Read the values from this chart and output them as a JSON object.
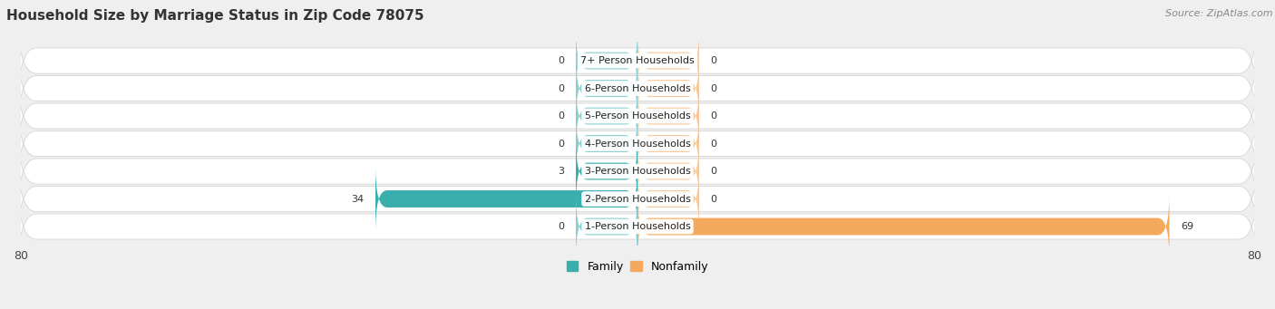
{
  "title": "Household Size by Marriage Status in Zip Code 78075",
  "source": "Source: ZipAtlas.com",
  "categories": [
    "7+ Person Households",
    "6-Person Households",
    "5-Person Households",
    "4-Person Households",
    "3-Person Households",
    "2-Person Households",
    "1-Person Households"
  ],
  "family_values": [
    0,
    0,
    0,
    0,
    3,
    34,
    0
  ],
  "nonfamily_values": [
    0,
    0,
    0,
    0,
    0,
    0,
    69
  ],
  "family_color": "#3aadad",
  "family_color_light": "#8acfcf",
  "nonfamily_color": "#f5a95c",
  "nonfamily_color_light": "#f7c99a",
  "x_min": -80,
  "x_max": 80,
  "background_color": "#efefef",
  "title_fontsize": 11,
  "source_fontsize": 8,
  "label_fontsize": 8,
  "tick_fontsize": 9,
  "legend_fontsize": 9,
  "min_stub": 8
}
